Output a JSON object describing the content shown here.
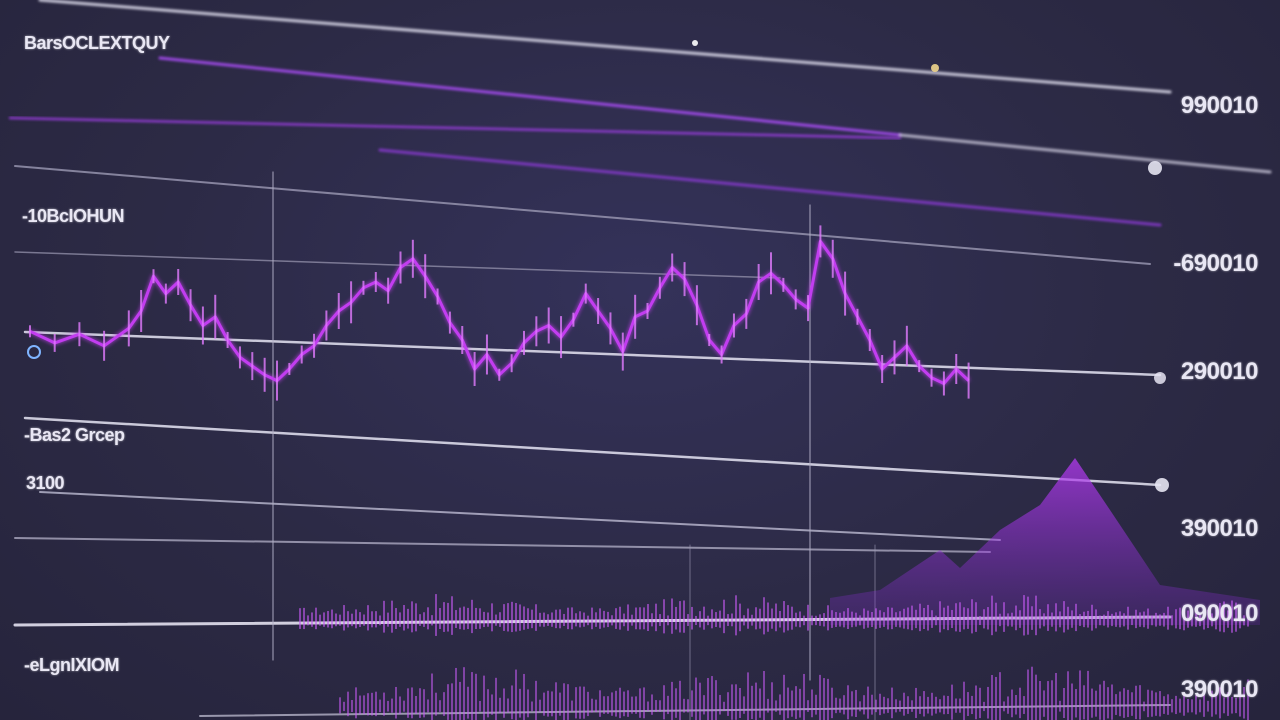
{
  "labels": {
    "left": [
      "BarsOCLEXTQUY",
      "-10BcIOHUN",
      "-Bas2 Grcep",
      "3100",
      "-eLgnIXIOM"
    ],
    "right": [
      "990010",
      "-690010",
      "290010",
      "390010",
      "090010",
      "390010"
    ]
  },
  "colors": {
    "background": "#2c2a45",
    "series": "#c23cf0",
    "guide_line": "#d8d6e6",
    "guide_line_purple": "#9b3de0"
  },
  "chart_data": {
    "type": "line",
    "title": "",
    "xlabel": "",
    "ylabel": "",
    "x_range": [
      0,
      100
    ],
    "y_range": [
      0,
      100
    ],
    "grid": false,
    "series": [
      {
        "values": [
          [
            0,
            53
          ],
          [
            2,
            49
          ],
          [
            4,
            52
          ],
          [
            6,
            48
          ],
          [
            8,
            54
          ],
          [
            9,
            60
          ],
          [
            10,
            72
          ],
          [
            11,
            66
          ],
          [
            12,
            70
          ],
          [
            13,
            62
          ],
          [
            14,
            55
          ],
          [
            15,
            58
          ],
          [
            16,
            50
          ],
          [
            17,
            44
          ],
          [
            18,
            41
          ],
          [
            19,
            38
          ],
          [
            20,
            36
          ],
          [
            21,
            40
          ],
          [
            22,
            45
          ],
          [
            23,
            48
          ],
          [
            24,
            55
          ],
          [
            25,
            60
          ],
          [
            26,
            63
          ],
          [
            27,
            68
          ],
          [
            28,
            70
          ],
          [
            29,
            67
          ],
          [
            30,
            75
          ],
          [
            31,
            78
          ],
          [
            32,
            72
          ],
          [
            33,
            65
          ],
          [
            34,
            56
          ],
          [
            35,
            50
          ],
          [
            36,
            40
          ],
          [
            37,
            45
          ],
          [
            38,
            38
          ],
          [
            39,
            42
          ],
          [
            40,
            49
          ],
          [
            41,
            53
          ],
          [
            42,
            55
          ],
          [
            43,
            51
          ],
          [
            44,
            57
          ],
          [
            45,
            66
          ],
          [
            46,
            60
          ],
          [
            47,
            54
          ],
          [
            48,
            46
          ],
          [
            49,
            58
          ],
          [
            50,
            60
          ],
          [
            51,
            68
          ],
          [
            52,
            75
          ],
          [
            53,
            71
          ],
          [
            54,
            62
          ],
          [
            55,
            50
          ],
          [
            56,
            45
          ],
          [
            57,
            55
          ],
          [
            58,
            59
          ],
          [
            59,
            70
          ],
          [
            60,
            73
          ],
          [
            61,
            69
          ],
          [
            62,
            64
          ],
          [
            63,
            61
          ],
          [
            64,
            84
          ],
          [
            65,
            78
          ],
          [
            66,
            66
          ],
          [
            67,
            58
          ],
          [
            68,
            50
          ],
          [
            69,
            40
          ],
          [
            70,
            44
          ],
          [
            71,
            48
          ],
          [
            72,
            41
          ],
          [
            73,
            37
          ],
          [
            74,
            35
          ],
          [
            75,
            40
          ],
          [
            76,
            36
          ]
        ]
      }
    ]
  }
}
